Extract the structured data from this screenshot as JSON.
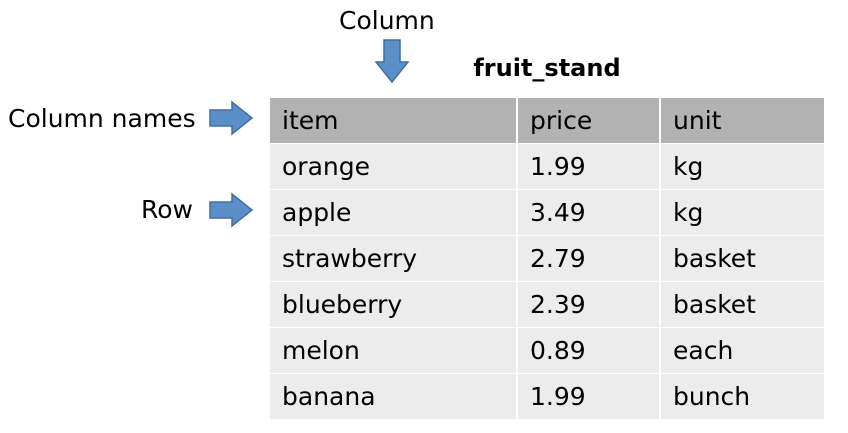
{
  "annotations": {
    "column": "Column",
    "column_names": "Column names",
    "row": "Row"
  },
  "colors": {
    "arrow_fill": "#5b8fc9",
    "arrow_stroke": "#3f6fa3",
    "header_bg": "#b2b2b2",
    "row_bg": "#ececec"
  },
  "table": {
    "title": "fruit_stand",
    "columns": [
      "item",
      "price",
      "unit"
    ],
    "rows": [
      [
        "orange",
        "1.99",
        "kg"
      ],
      [
        "apple",
        "3.49",
        "kg"
      ],
      [
        "strawberry",
        "2.79",
        "basket"
      ],
      [
        "blueberry",
        "2.39",
        "basket"
      ],
      [
        "melon",
        "0.89",
        "each"
      ],
      [
        "banana",
        "1.99",
        "bunch"
      ]
    ]
  }
}
